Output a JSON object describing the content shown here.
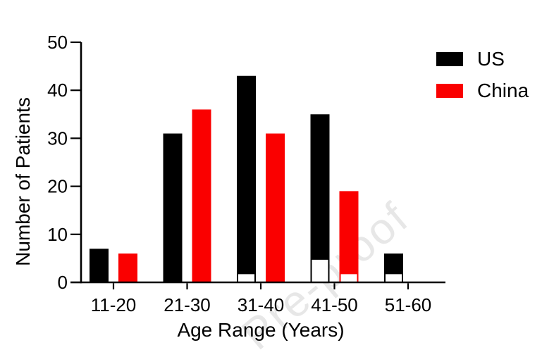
{
  "watermark": {
    "text": "Pre-proof",
    "color": "#e7e7e7"
  },
  "chart_data": {
    "type": "bar",
    "title": "",
    "categories": [
      "11-20",
      "21-30",
      "31-40",
      "41-50",
      "51-60"
    ],
    "series": [
      {
        "name": "US",
        "color": "#000000",
        "values": [
          7,
          31,
          43,
          35,
          6
        ],
        "white_overlay_values": [
          0,
          0,
          2,
          5,
          2
        ]
      },
      {
        "name": "China",
        "color": "#fa0000",
        "values": [
          6,
          36,
          31,
          19,
          0
        ],
        "white_overlay_values": [
          0,
          0,
          0,
          2,
          0
        ]
      }
    ],
    "xlabel": "Age Range (Years)",
    "ylabel": "Number of Patients",
    "ylim": [
      0,
      50
    ],
    "yticks": [
      0,
      10,
      20,
      30,
      40,
      50
    ],
    "grid": false,
    "bar_style": "grouped",
    "legend_position": "top-right",
    "axis_color": "#000000"
  }
}
